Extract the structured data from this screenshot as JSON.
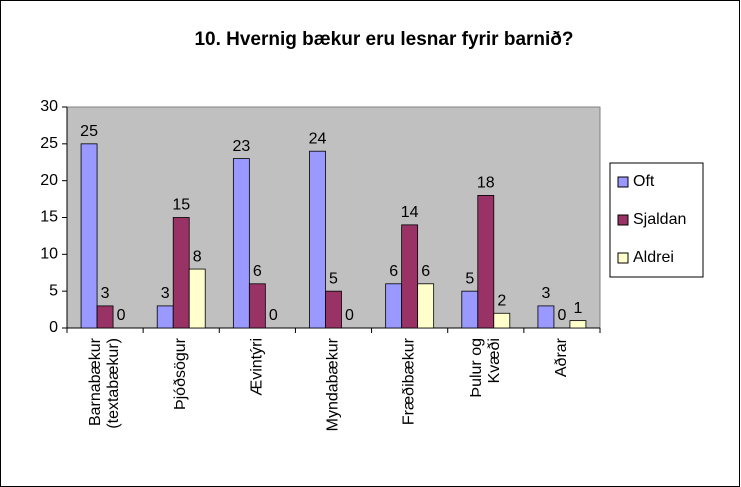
{
  "chart_data": {
    "type": "bar",
    "title": "10. Hvernig bækur eru lesnar fyrir barnið?",
    "categories": [
      "Barnabækur\n(textabækur)",
      "Þjóðsögur",
      "Ævintýri",
      "Myndabækur",
      "Fræðibækur",
      "Þulur og\nKvæði",
      "Aðrar"
    ],
    "series": [
      {
        "name": "Oft",
        "color": "#9999ff",
        "values": [
          25,
          3,
          23,
          24,
          6,
          5,
          3
        ]
      },
      {
        "name": "Sjaldan",
        "color": "#993366",
        "values": [
          3,
          15,
          6,
          5,
          14,
          18,
          0
        ]
      },
      {
        "name": "Aldrei",
        "color": "#ffffcc",
        "values": [
          0,
          8,
          0,
          0,
          6,
          2,
          1
        ]
      }
    ],
    "ylim": [
      0,
      30
    ],
    "yticks": [
      0,
      5,
      10,
      15,
      20,
      25,
      30
    ],
    "plot_background": "#c0c0c0",
    "legend": "right"
  }
}
